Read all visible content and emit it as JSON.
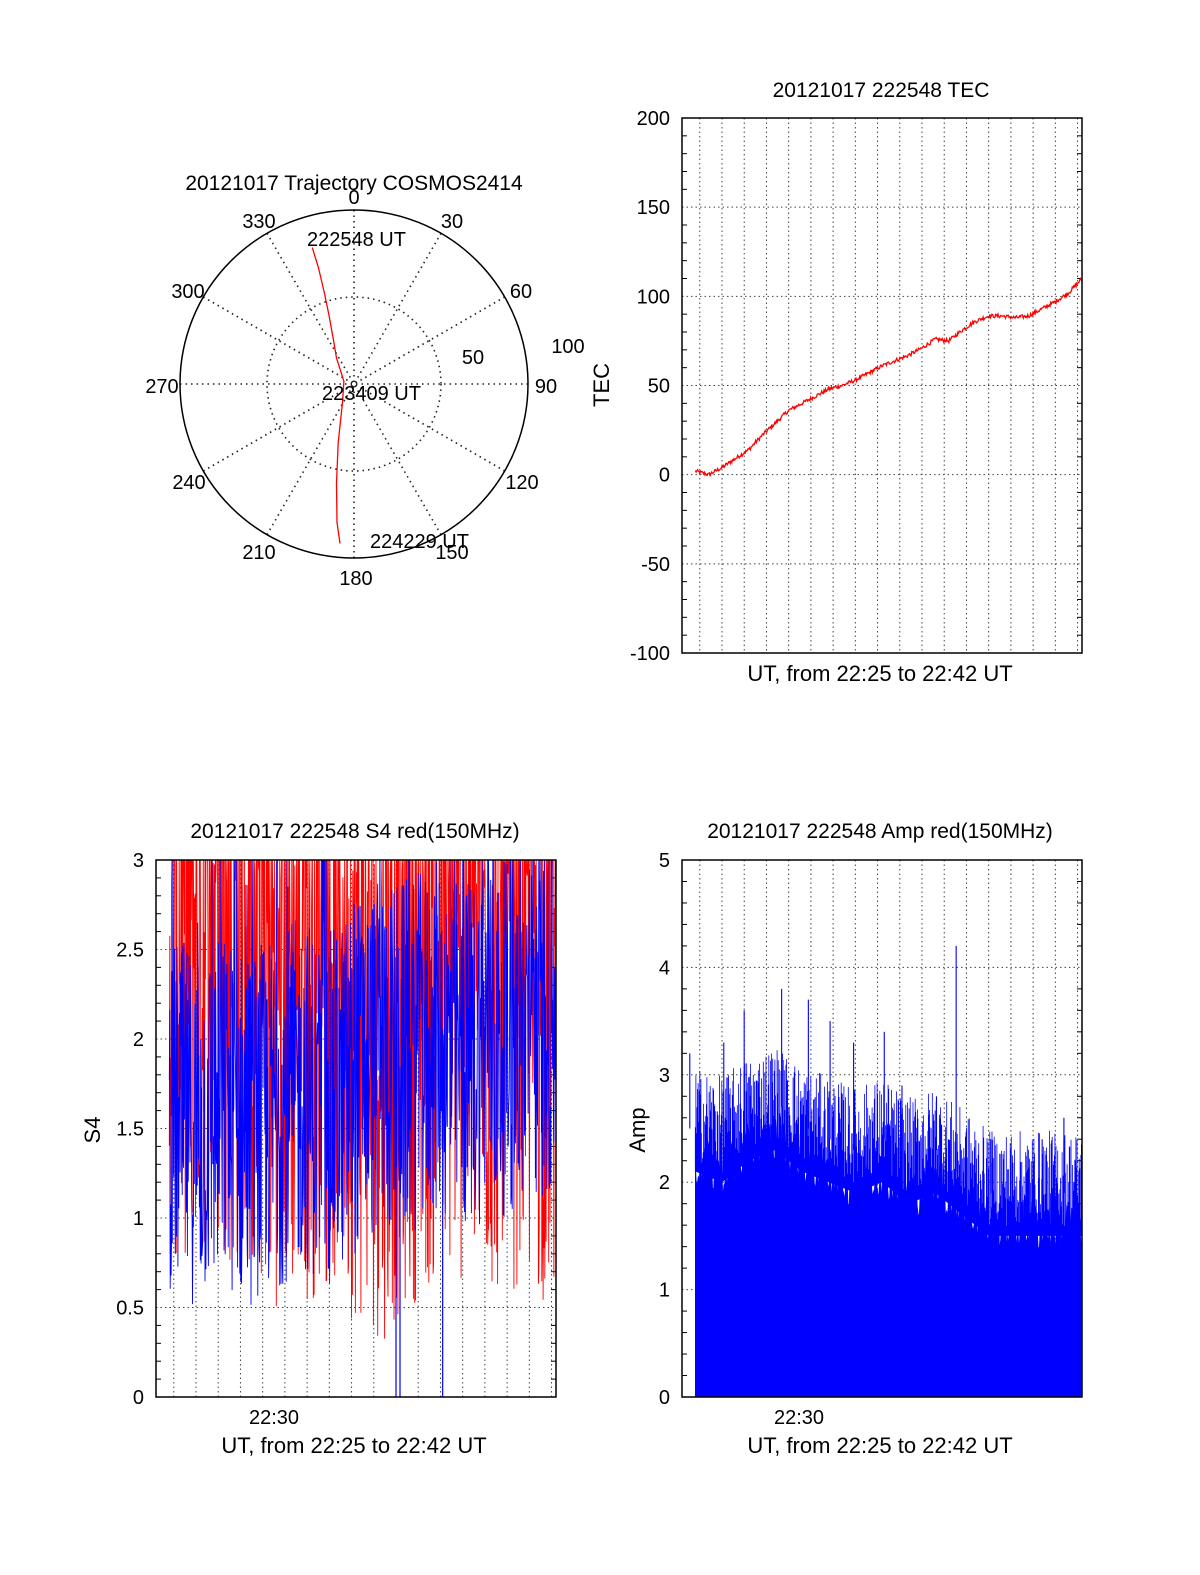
{
  "polar": {
    "title": "20121017 Trajectory COSMOS2414",
    "azimuth_labels": [
      "0",
      "30",
      "60",
      "90",
      "120",
      "150",
      "180",
      "210",
      "240",
      "270",
      "300",
      "330"
    ],
    "ring_labels": [
      "50",
      "100"
    ],
    "start_label": "222548 UT",
    "mid_label": "223409 UT",
    "end_label": "224229 UT",
    "trajectory_color": "#ff0000"
  },
  "chart_data": [
    {
      "id": "trajectory",
      "type": "scatter",
      "title": "20121017 Trajectory COSMOS2414",
      "projection": "polar",
      "rmax": 100,
      "radial_ticks": [
        50,
        100
      ],
      "azimuth_ticks": [
        0,
        30,
        60,
        90,
        120,
        150,
        180,
        210,
        240,
        270,
        300,
        330
      ],
      "series": [
        {
          "color": "#ff0000",
          "az": [
            343,
            343,
            342,
            340,
            336,
            326,
            285,
            213,
            195,
            190,
            187,
            185
          ],
          "r": [
            82,
            70,
            55,
            42,
            30,
            18,
            6,
            12,
            35,
            58,
            80,
            92
          ],
          "labels": [
            "222548 UT",
            "223409 UT",
            "224229 UT"
          ]
        }
      ]
    },
    {
      "id": "tec",
      "type": "line",
      "title": "20121017 222548 TEC",
      "xlabel": "UT, from 22:25 to 22:42 UT",
      "ylabel": "TEC",
      "ylim": [
        -100,
        200
      ],
      "yticks": [
        -100,
        -50,
        0,
        50,
        100,
        150,
        200
      ],
      "xlim": [
        22.42,
        22.72
      ],
      "series": [
        {
          "color": "#ff0000",
          "x": [
            22.43,
            22.44,
            22.45,
            22.46,
            22.47,
            22.48,
            22.49,
            22.5,
            22.51,
            22.52,
            22.53,
            22.54,
            22.55,
            22.56,
            22.57,
            22.58,
            22.59,
            22.6,
            22.61,
            22.62,
            22.63,
            22.64,
            22.65,
            22.66,
            22.67,
            22.68,
            22.69,
            22.7,
            22.71,
            22.72
          ],
          "y": [
            2,
            0,
            4,
            9,
            14,
            22,
            29,
            36,
            40,
            44,
            48,
            50,
            53,
            57,
            61,
            64,
            67,
            71,
            76,
            75,
            81,
            86,
            89,
            89,
            88,
            89,
            93,
            97,
            102,
            110
          ]
        }
      ]
    },
    {
      "id": "s4",
      "type": "line",
      "title": "20121017 222548 S4 red(150MHz)",
      "xlabel": "UT, from 22:25 to 22:42 UT",
      "ylabel": "S4",
      "ylim": [
        0,
        3
      ],
      "yticks": [
        0,
        0.5,
        1,
        1.5,
        2,
        2.5,
        3
      ],
      "yticklabels": [
        "0",
        "0.5",
        "1",
        "1.5",
        "2",
        "2.5",
        "3"
      ],
      "xlim": [
        22.42,
        22.72
      ],
      "xtick_label": "22:30",
      "xtick_value": 22.5,
      "series": [
        {
          "color": "#ff0000",
          "x": [
            22.43,
            22.45,
            22.47,
            22.49,
            22.51,
            22.53,
            22.55,
            22.57,
            22.59,
            22.61,
            22.63,
            22.65,
            22.67,
            22.69,
            22.71
          ],
          "y": [
            2.6,
            2.7,
            2.6,
            2.5,
            2.4,
            2.4,
            2.5,
            2.3,
            2.2,
            2.4,
            2.5,
            2.5,
            2.4,
            2.5,
            2.4
          ]
        },
        {
          "color": "#0000ff",
          "x": [
            22.43,
            22.45,
            22.47,
            22.49,
            22.51,
            22.53,
            22.55,
            22.57,
            22.59,
            22.61,
            22.63,
            22.65,
            22.67,
            22.69,
            22.71
          ],
          "y": [
            1.6,
            1.5,
            1.6,
            1.5,
            1.6,
            1.7,
            1.6,
            1.8,
            1.9,
            1.9,
            2.0,
            1.9,
            2.0,
            2.0,
            2.1
          ]
        }
      ]
    },
    {
      "id": "amp",
      "type": "bar",
      "title": "20121017 222548 Amp red(150MHz)",
      "xlabel": "UT, from 22:25 to 22:42 UT",
      "ylabel": "Amp",
      "ylim": [
        0,
        5
      ],
      "yticks": [
        0,
        1,
        2,
        3,
        4,
        5
      ],
      "xlim": [
        22.42,
        22.72
      ],
      "xtick_label": "22:30",
      "xtick_value": 22.5,
      "series": [
        {
          "color": "#0000ff",
          "x": [
            22.43,
            22.45,
            22.47,
            22.49,
            22.51,
            22.53,
            22.55,
            22.57,
            22.59,
            22.61,
            22.63,
            22.65,
            22.67,
            22.69,
            22.71
          ],
          "y": [
            2.5,
            2.4,
            2.6,
            2.7,
            2.5,
            2.4,
            2.3,
            2.4,
            2.2,
            2.3,
            2.1,
            1.9,
            1.9,
            1.9,
            1.9
          ],
          "peaks": [
            3.2,
            3.3,
            3.6,
            3.8,
            3.7,
            3.5,
            3.3,
            3.4,
            2.9,
            2.8,
            4.2,
            2.4,
            2.3,
            2.4,
            2.6
          ]
        }
      ]
    }
  ]
}
